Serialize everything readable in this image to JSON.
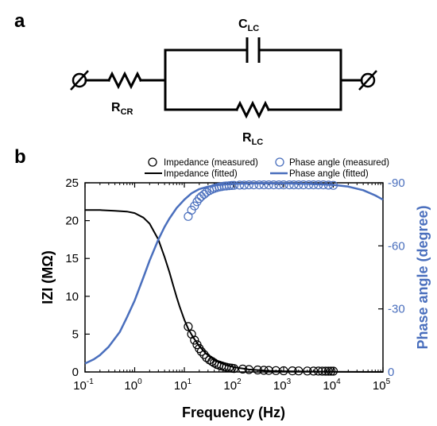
{
  "panel_a": {
    "label": "a",
    "components": {
      "capacitor": {
        "main": "C",
        "sub": "LC"
      },
      "series_resistor": {
        "main": "R",
        "sub": "CR"
      },
      "parallel_resistor": {
        "main": "R",
        "sub": "LC"
      }
    }
  },
  "panel_b": {
    "label": "b"
  },
  "chart_data": {
    "type": "scatter",
    "title": "",
    "xlabel": "Frequency (Hz)",
    "ylabel_left": "IZI (MΩ)",
    "ylabel_right": "Phase angle (degree)",
    "x_scale": "log",
    "xlim": [
      0.1,
      100000
    ],
    "ylim_left": [
      0,
      25
    ],
    "ylim_right": [
      0,
      -90
    ],
    "x_ticks": [
      {
        "v": 0.1,
        "base": "10",
        "exp": "-1"
      },
      {
        "v": 1,
        "base": "10",
        "exp": "0"
      },
      {
        "v": 10,
        "base": "10",
        "exp": "1"
      },
      {
        "v": 100,
        "base": "10",
        "exp": "2"
      },
      {
        "v": 1000,
        "base": "10",
        "exp": "3"
      },
      {
        "v": 10000,
        "base": "10",
        "exp": "4"
      },
      {
        "v": 100000,
        "base": "10",
        "exp": "5"
      }
    ],
    "y_left_ticks": [
      "0",
      "5",
      "10",
      "15",
      "20",
      "25"
    ],
    "y_right_ticks": [
      "0",
      "-30",
      "-60",
      "-90"
    ],
    "grid": false,
    "legend_position": "top",
    "colors": {
      "impedance": "#000000",
      "phase": "#4a6fbd"
    },
    "series": [
      {
        "name": "Impedance (measured)",
        "axis": "left",
        "style": "open-circle",
        "x": [
          12,
          14,
          16,
          18,
          20,
          22,
          25,
          28,
          32,
          36,
          40,
          45,
          50,
          56,
          63,
          70,
          80,
          90,
          100,
          150,
          200,
          300,
          400,
          500,
          700,
          1000,
          1500,
          2000,
          3000,
          4000,
          5000,
          6000,
          7000,
          8000,
          9000,
          10000
        ],
        "y": [
          6.0,
          5.0,
          4.2,
          3.6,
          3.1,
          2.7,
          2.3,
          1.9,
          1.6,
          1.4,
          1.2,
          1.0,
          0.9,
          0.8,
          0.7,
          0.62,
          0.55,
          0.5,
          0.45,
          0.38,
          0.32,
          0.26,
          0.22,
          0.2,
          0.18,
          0.16,
          0.15,
          0.14,
          0.13,
          0.12,
          0.12,
          0.11,
          0.11,
          0.1,
          0.1,
          0.1
        ]
      },
      {
        "name": "Impedance (fitted)",
        "axis": "left",
        "style": "line",
        "x": [
          0.1,
          0.2,
          0.4,
          0.7,
          1,
          1.5,
          2,
          3,
          4,
          5,
          6,
          7,
          8,
          10,
          12,
          15,
          20,
          25,
          30,
          40,
          50,
          70,
          100,
          200,
          500,
          1000,
          10000,
          100000
        ],
        "y": [
          21.4,
          21.4,
          21.3,
          21.2,
          21.0,
          20.4,
          19.6,
          17.5,
          15.2,
          13.2,
          11.4,
          9.9,
          8.7,
          6.9,
          5.7,
          4.6,
          3.4,
          2.7,
          2.2,
          1.6,
          1.3,
          0.9,
          0.63,
          0.33,
          0.15,
          0.09,
          0.02,
          0.0
        ]
      },
      {
        "name": "Phase angle (measured)",
        "axis": "right",
        "style": "open-circle",
        "x": [
          12,
          14,
          16,
          18,
          20,
          22,
          25,
          28,
          32,
          36,
          40,
          45,
          50,
          56,
          63,
          70,
          80,
          90,
          100,
          130,
          160,
          200,
          250,
          320,
          400,
          500,
          630,
          800,
          1000,
          1300,
          1600,
          2000,
          2500,
          3200,
          4000,
          5000,
          6300,
          8000,
          10000
        ],
        "y": [
          -74,
          -77,
          -79,
          -81,
          -82.5,
          -83.5,
          -84.5,
          -85.5,
          -86.3,
          -86.9,
          -87.3,
          -87.7,
          -88,
          -88.2,
          -88.4,
          -88.5,
          -88.6,
          -88.7,
          -88.8,
          -88.9,
          -88.9,
          -89,
          -89,
          -89,
          -89,
          -89,
          -89,
          -89,
          -89,
          -89,
          -89,
          -89,
          -89,
          -89,
          -89,
          -89,
          -89,
          -88.9,
          -88.8
        ]
      },
      {
        "name": "Phase angle (fitted)",
        "axis": "right",
        "style": "line",
        "x": [
          0.1,
          0.15,
          0.2,
          0.3,
          0.5,
          0.7,
          1,
          1.5,
          2,
          3,
          4,
          5,
          7,
          10,
          14,
          20,
          30,
          50,
          100,
          300,
          1000,
          3000,
          10000,
          20000,
          40000,
          70000,
          100000
        ],
        "y": [
          -4,
          -6,
          -8,
          -12,
          -19,
          -26,
          -34,
          -45,
          -53,
          -63,
          -69,
          -73,
          -78,
          -82,
          -85,
          -87,
          -88.2,
          -89,
          -89.5,
          -89.7,
          -89.7,
          -89.5,
          -89.0,
          -88.2,
          -86.5,
          -84,
          -82
        ]
      }
    ]
  }
}
